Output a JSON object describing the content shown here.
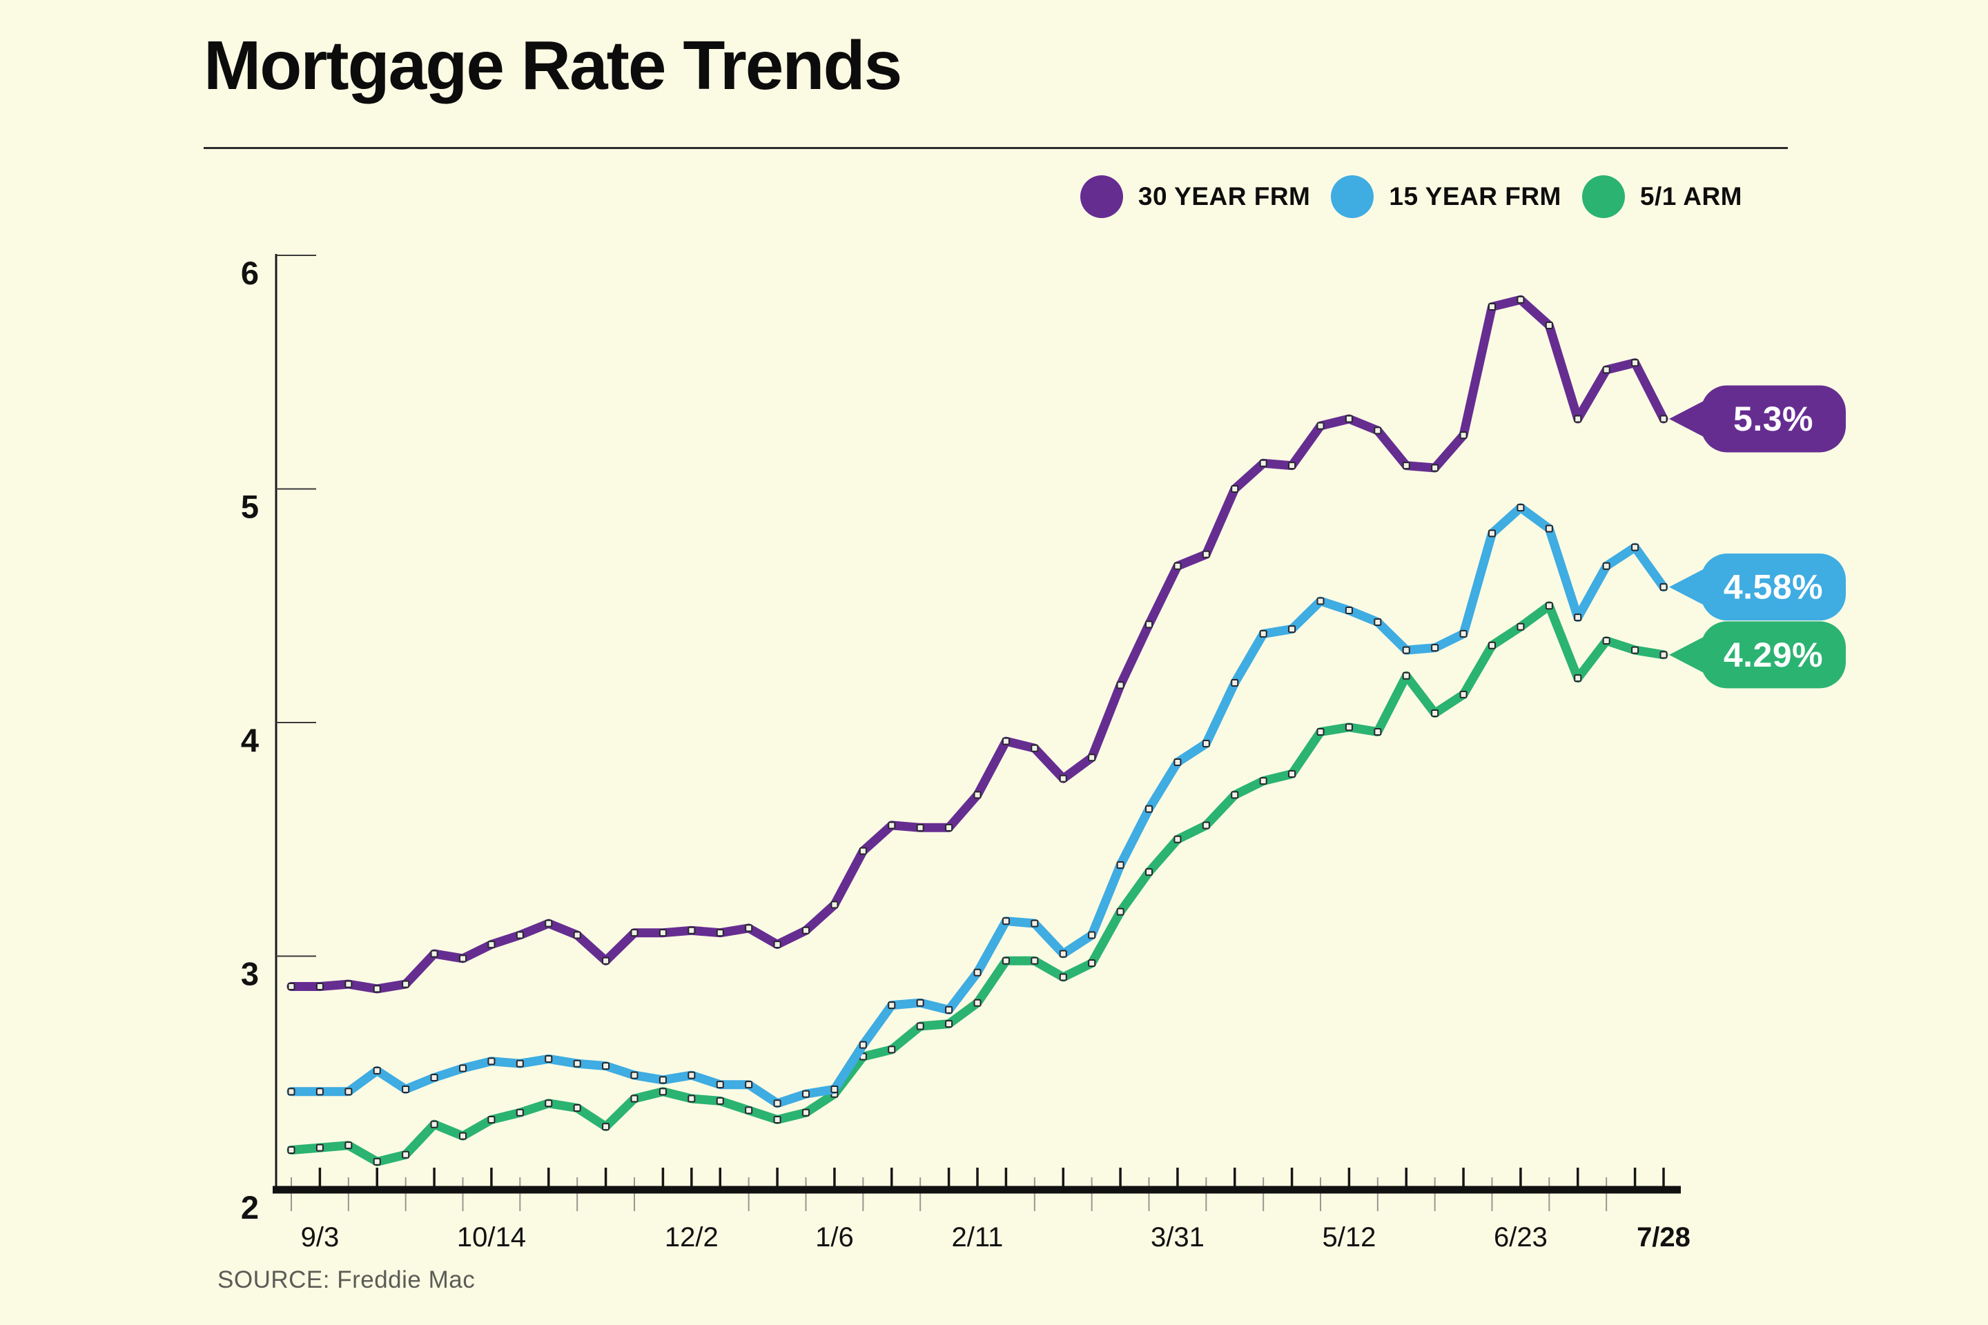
{
  "page": {
    "background": "#fbfbe4"
  },
  "header": {
    "title": "Mortgage Rate Trends"
  },
  "source": "SOURCE: Freddie Mac",
  "legend": [
    {
      "label": "30 YEAR FRM",
      "color": "#662d91"
    },
    {
      "label": "15 YEAR FRM",
      "color": "#3face2"
    },
    {
      "label": "5/1 ARM",
      "color": "#2bb371"
    }
  ],
  "chart_data": {
    "type": "line",
    "title": "Mortgage Rate Trends",
    "xlabel": "",
    "ylabel": "",
    "ylim": [
      2,
      6
    ],
    "y_ticks": [
      6,
      5,
      4,
      3,
      2
    ],
    "grid": false,
    "legend_position": "top-right",
    "x_tick_labels": [
      {
        "index": 1,
        "label": "9/3",
        "bold": false
      },
      {
        "index": 7,
        "label": "10/14",
        "bold": false
      },
      {
        "index": 14,
        "label": "12/2",
        "bold": false
      },
      {
        "index": 19,
        "label": "1/6",
        "bold": false
      },
      {
        "index": 24,
        "label": "2/11",
        "bold": false
      },
      {
        "index": 31,
        "label": "3/31",
        "bold": false
      },
      {
        "index": 37,
        "label": "5/12",
        "bold": false
      },
      {
        "index": 43,
        "label": "6/23",
        "bold": false
      },
      {
        "index": 48,
        "label": "7/28",
        "bold": true
      }
    ],
    "series": [
      {
        "name": "5/1 ARM",
        "color": "#2bb371",
        "end_label": "4.29%",
        "end_value": 4.29,
        "values": [
          2.17,
          2.18,
          2.19,
          2.12,
          2.15,
          2.28,
          2.23,
          2.3,
          2.33,
          2.37,
          2.35,
          2.27,
          2.39,
          2.42,
          2.39,
          2.38,
          2.34,
          2.3,
          2.33,
          2.41,
          2.57,
          2.6,
          2.7,
          2.71,
          2.8,
          2.98,
          2.98,
          2.91,
          2.97,
          3.19,
          3.36,
          3.5,
          3.56,
          3.69,
          3.75,
          3.78,
          3.96,
          3.98,
          3.96,
          4.2,
          4.04,
          4.12,
          4.33,
          4.41,
          4.5,
          4.19,
          4.35,
          4.31,
          4.29
        ]
      },
      {
        "name": "15 YEAR FRM",
        "color": "#3face2",
        "end_label": "4.58%",
        "end_value": 4.58,
        "values": [
          2.42,
          2.42,
          2.42,
          2.51,
          2.43,
          2.48,
          2.52,
          2.55,
          2.54,
          2.56,
          2.54,
          2.53,
          2.49,
          2.47,
          2.49,
          2.45,
          2.45,
          2.37,
          2.41,
          2.43,
          2.62,
          2.79,
          2.8,
          2.77,
          2.93,
          3.15,
          3.14,
          3.01,
          3.09,
          3.39,
          3.63,
          3.83,
          3.91,
          4.17,
          4.38,
          4.4,
          4.52,
          4.48,
          4.43,
          4.31,
          4.32,
          4.38,
          4.81,
          4.92,
          4.83,
          4.45,
          4.67,
          4.75,
          4.58
        ]
      },
      {
        "name": "30 YEAR FRM",
        "color": "#662d91",
        "end_label": "5.3%",
        "end_value": 5.3,
        "values": [
          2.87,
          2.87,
          2.88,
          2.86,
          2.88,
          3.01,
          2.99,
          3.05,
          3.09,
          3.14,
          3.09,
          2.98,
          3.1,
          3.1,
          3.11,
          3.1,
          3.12,
          3.05,
          3.11,
          3.22,
          3.45,
          3.56,
          3.55,
          3.55,
          3.69,
          3.92,
          3.89,
          3.76,
          3.85,
          4.16,
          4.42,
          4.67,
          4.72,
          5.0,
          5.11,
          5.1,
          5.27,
          5.3,
          5.25,
          5.1,
          5.09,
          5.23,
          5.78,
          5.81,
          5.7,
          5.3,
          5.51,
          5.54,
          5.3
        ]
      }
    ]
  }
}
